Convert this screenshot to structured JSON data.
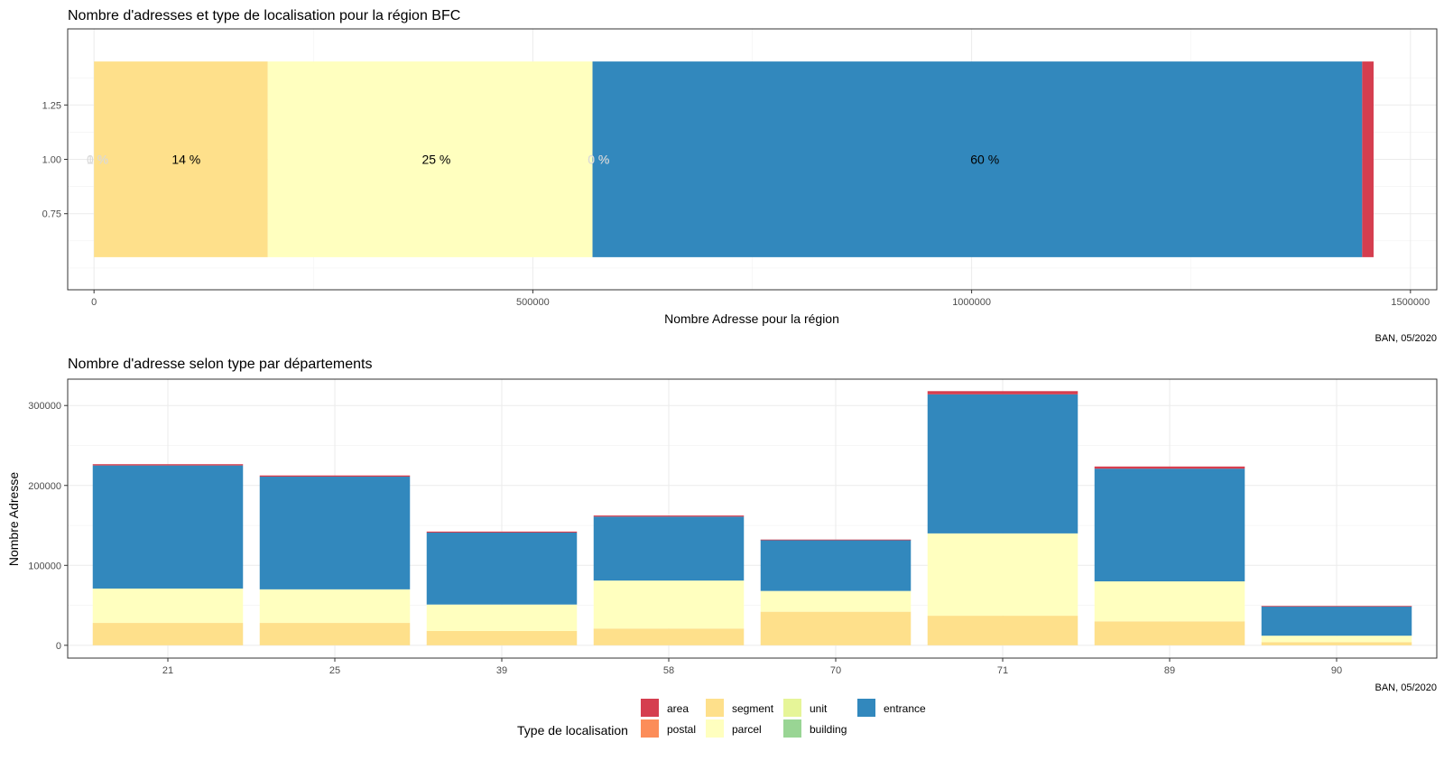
{
  "colors": {
    "area": "#D53E4F",
    "postal": "#FC8D59",
    "segment": "#FEE08B",
    "parcel": "#FFFFBF",
    "unit": "#E6F598",
    "building": "#99D594",
    "entrance": "#3288BD"
  },
  "legend": {
    "title": "Type de localisation",
    "items": [
      "area",
      "postal",
      "segment",
      "parcel",
      "unit",
      "building",
      "entrance"
    ]
  },
  "chart_data": [
    {
      "type": "bar",
      "orientation": "horizontal",
      "stacked": true,
      "title": "Nombre d'adresses et type de localisation pour la région BFC",
      "xlabel": "Nombre Adresse pour la région",
      "ylabel": "",
      "caption": "BAN, 05/2020",
      "xlim": [
        -30000,
        1530000
      ],
      "ylim": [
        0.4,
        1.6
      ],
      "xticks": [
        "0",
        "500000",
        "1000000",
        "1500000"
      ],
      "xtick_values": [
        0,
        500000,
        1000000,
        1500000
      ],
      "yticks": [
        "0.75",
        "1.00",
        "1.25"
      ],
      "ytick_values": [
        0.75,
        1.0,
        1.25
      ],
      "bar_center": 1.0,
      "bar_width": 0.9,
      "segments": [
        {
          "type": "area",
          "value": 13000,
          "label": "1 %"
        },
        {
          "type": "postal",
          "value": 0,
          "label": "0 %"
        },
        {
          "type": "segment",
          "value": 198000,
          "label": "14 %"
        },
        {
          "type": "parcel",
          "value": 370000,
          "label": "25 %"
        },
        {
          "type": "unit",
          "value": 0,
          "label": "0 %"
        },
        {
          "type": "building",
          "value": 0,
          "label": "0 %"
        },
        {
          "type": "entrance",
          "value": 877000,
          "label": "60 %"
        }
      ],
      "stack_order": [
        "segment",
        "parcel",
        "unit",
        "building",
        "entrance",
        "area"
      ],
      "labels": [
        {
          "text": "1 %",
          "x": 4000,
          "color": "#d9d9d9"
        },
        {
          "text": "0 %",
          "x": 4000,
          "color": "#d9d9d9"
        },
        {
          "text": "14 %",
          "x": 105000,
          "color": "#000000"
        },
        {
          "text": "25 %",
          "x": 390000,
          "color": "#000000"
        },
        {
          "text": "0 %",
          "x": 575000,
          "color": "#d9d9d9"
        },
        {
          "text": "0 %",
          "x": 575000,
          "color": "#d9d9d9"
        },
        {
          "text": "60 %",
          "x": 1015000,
          "color": "#000000"
        }
      ]
    },
    {
      "type": "bar",
      "stacked": true,
      "title": "Nombre d'adresse selon type par départements",
      "xlabel": "",
      "ylabel": "Nombre Adresse",
      "caption": "BAN, 05/2020",
      "ylim": [
        -16000,
        333000
      ],
      "yticks": [
        "0",
        "100000",
        "200000",
        "300000"
      ],
      "ytick_values": [
        0,
        100000,
        200000,
        300000
      ],
      "categories": [
        "21",
        "25",
        "39",
        "58",
        "70",
        "71",
        "89",
        "90"
      ],
      "stack_order": [
        "segment",
        "parcel",
        "unit",
        "building",
        "entrance",
        "area"
      ],
      "series": [
        {
          "name": "segment",
          "values": [
            28000,
            28000,
            18000,
            21000,
            42000,
            37000,
            30000,
            4000
          ]
        },
        {
          "name": "parcel",
          "values": [
            43000,
            42000,
            33000,
            60000,
            26000,
            103000,
            50000,
            8000
          ]
        },
        {
          "name": "unit",
          "values": [
            0,
            0,
            0,
            0,
            0,
            0,
            0,
            0
          ]
        },
        {
          "name": "building",
          "values": [
            0,
            0,
            0,
            0,
            0,
            0,
            0,
            0
          ]
        },
        {
          "name": "entrance",
          "values": [
            154000,
            141000,
            90000,
            80000,
            64000,
            174000,
            141000,
            37000
          ]
        },
        {
          "name": "area",
          "values": [
            1600,
            1500,
            1300,
            1400,
            300,
            4000,
            2700,
            200
          ]
        }
      ]
    }
  ]
}
